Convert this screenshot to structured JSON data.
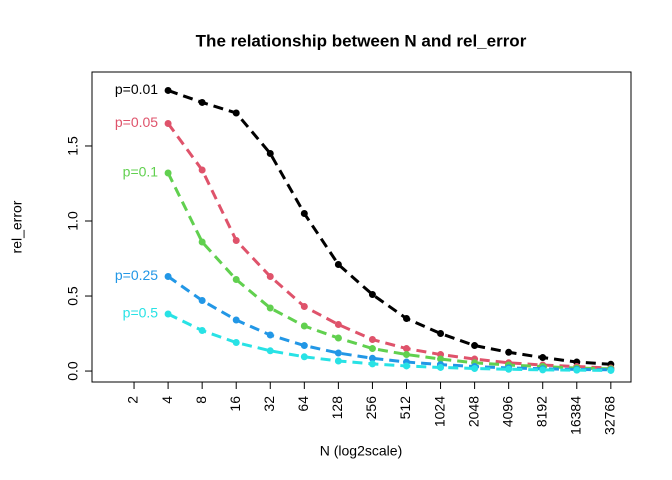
{
  "chart_data": {
    "type": "line",
    "title": "The relationship between N and rel_error",
    "x_label": "N (log2scale)",
    "y_label": "rel_error",
    "x": [
      4,
      8,
      16,
      32,
      64,
      128,
      256,
      512,
      1024,
      2048,
      4096,
      8192,
      16384,
      32768
    ],
    "x_log_base": 2,
    "xlim": [
      0.85,
      49400
    ],
    "xticks": [
      2,
      4,
      8,
      16,
      32,
      64,
      128,
      256,
      512,
      1024,
      2048,
      4096,
      8192,
      16384,
      32768
    ],
    "ylim": [
      -0.073,
      1.993
    ],
    "yticks": [
      {
        "value": 0,
        "label": "0.0"
      },
      0.5,
      {
        "value": 1,
        "label": "1.0"
      },
      1.5
    ],
    "line_style": "dashed",
    "series": [
      {
        "name": "p=0.01",
        "color": "#000000",
        "values": [
          1.87,
          1.79,
          1.72,
          1.45,
          1.05,
          0.71,
          0.51,
          0.35,
          0.25,
          0.17,
          0.125,
          0.09,
          0.06,
          0.045
        ]
      },
      {
        "name": "p=0.05",
        "color": "#DF536B",
        "values": [
          1.65,
          1.34,
          0.87,
          0.63,
          0.43,
          0.31,
          0.21,
          0.15,
          0.11,
          0.08,
          0.055,
          0.04,
          0.03,
          0.02
        ]
      },
      {
        "name": "p=0.1",
        "color": "#61D04F",
        "values": [
          1.32,
          0.86,
          0.61,
          0.42,
          0.3,
          0.22,
          0.15,
          0.11,
          0.08,
          0.055,
          0.04,
          0.03,
          0.02,
          0.015
        ]
      },
      {
        "name": "p=0.25",
        "color": "#2297E6",
        "values": [
          0.63,
          0.47,
          0.34,
          0.24,
          0.17,
          0.12,
          0.085,
          0.06,
          0.043,
          0.03,
          0.021,
          0.015,
          0.011,
          0.008
        ]
      },
      {
        "name": "p=0.5",
        "color": "#28E2E5",
        "values": [
          0.38,
          0.27,
          0.19,
          0.135,
          0.095,
          0.067,
          0.048,
          0.034,
          0.024,
          0.017,
          0.012,
          0.008,
          0.006,
          0.004
        ]
      }
    ]
  }
}
